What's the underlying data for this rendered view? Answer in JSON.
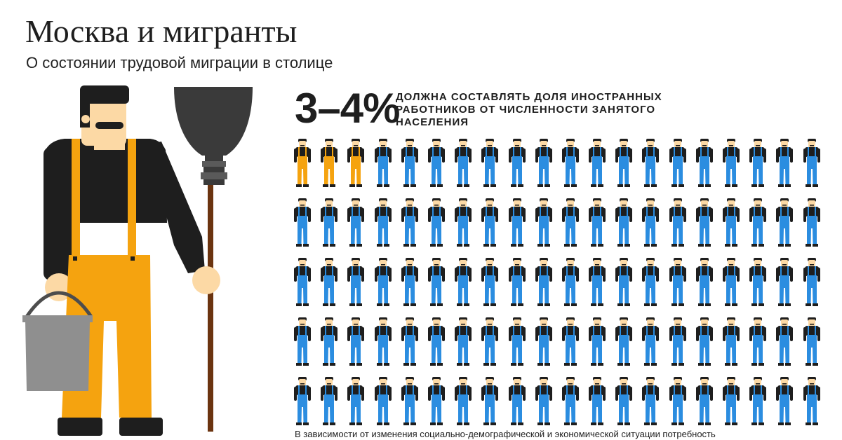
{
  "header": {
    "title": "Москва и мигранты",
    "subtitle": "О состоянии трудовой миграции в столице"
  },
  "stat": {
    "value": "3–4%",
    "description": "должна составлять доля иностранных работников от численности занятого населения"
  },
  "chart_data": {
    "type": "pictogram",
    "total_icons": 100,
    "highlighted_icons": 3,
    "layout": {
      "rows": 5,
      "columns": 20
    },
    "colors": {
      "highlight_overalls": "#f5a30f",
      "default_overalls": "#2b8de0",
      "shirt": "#1e1e1e",
      "skin": "#fcd9a5",
      "hair": "#1e1e1e"
    }
  },
  "footnote": "В зависимости от изменения социально-демографической и экономической ситуации потребность",
  "colors": {
    "accent_orange": "#f5a30f",
    "accent_blue": "#2b8de0",
    "text": "#1e1e1e",
    "bucket": "#8f8f8f",
    "broom_handle": "#6b3410"
  }
}
